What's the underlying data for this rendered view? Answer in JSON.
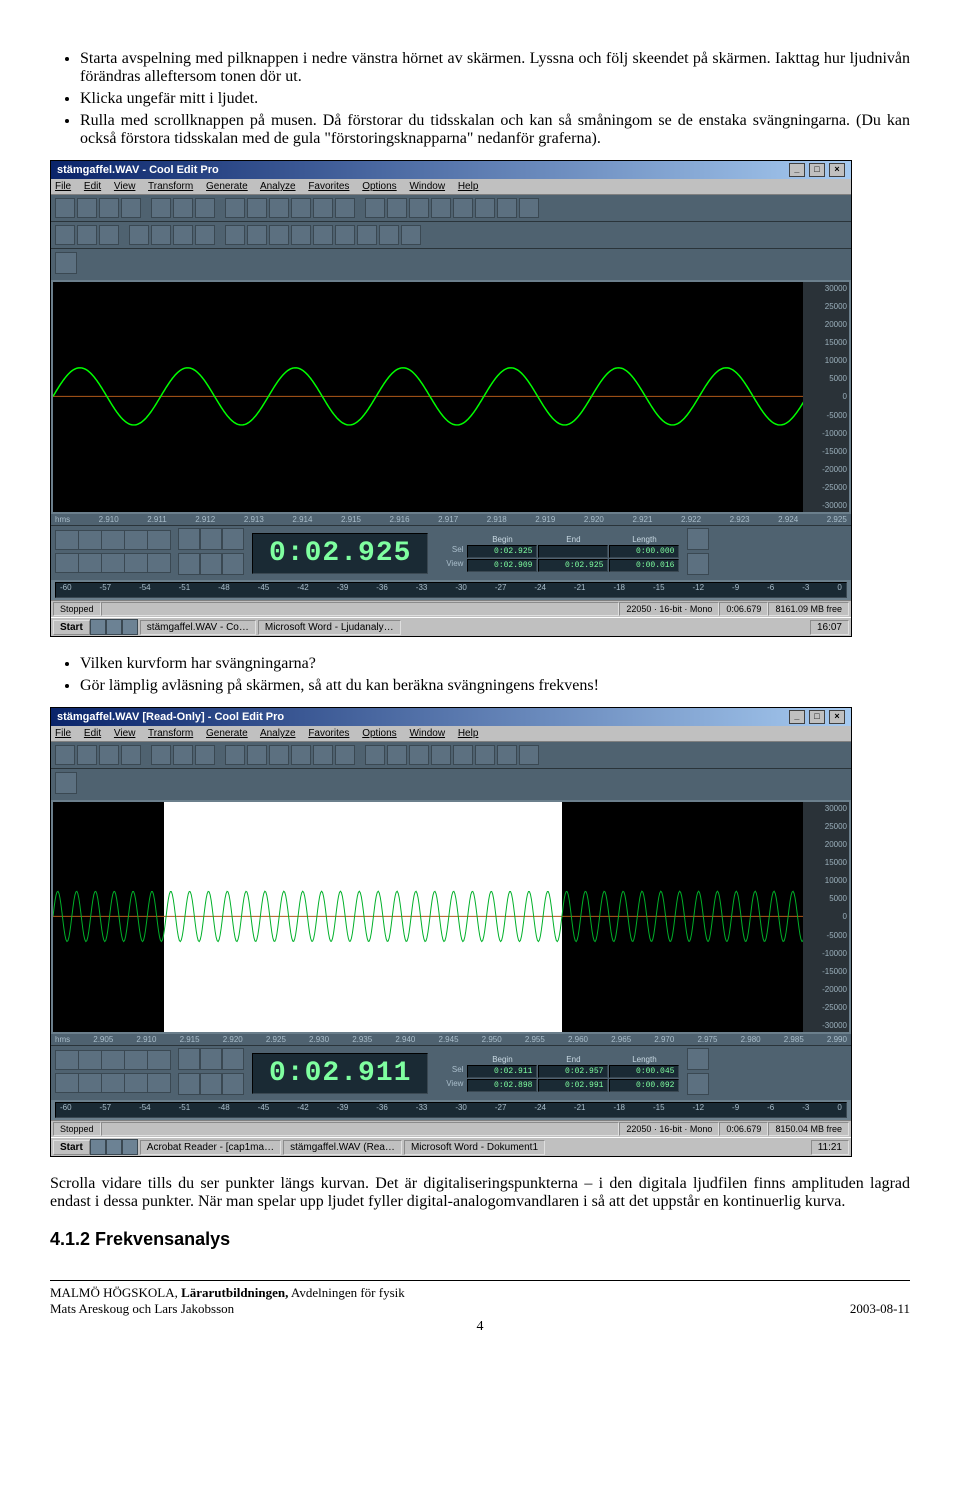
{
  "bullets_a": [
    "Starta avspelning med pilknappen i nedre vänstra hörnet av skärmen. Lyssna och följ skeendet på skärmen. Iakttag hur ljudnivån förändras alleftersom tonen dör ut.",
    "Klicka ungefär mitt i ljudet.",
    "Rulla med scrollknappen på musen. Då förstorar du tidsskalan och kan så småningom se de enstaka svängningarna. (Du kan också förstora tidsskalan med de gula \"förstoringsknapparna\" nedanför graferna)."
  ],
  "bullets_b": [
    "Vilken kurvform har svängningarna?",
    "Gör lämplig avläsning på skärmen, så att du kan beräkna svängningens frekvens!"
  ],
  "paragraph": "Scrolla vidare tills du ser punkter längs kurvan. Det är digitaliseringspunkterna – i den digitala ljudfilen finns amplituden lagrad endast i dessa punkter. När man spelar upp ljudet fyller digital-analogomvandlaren i så att det uppstår en kontinuerlig kurva.",
  "heading412": "4.1.2  Frekvensanalys",
  "footer": {
    "org": "MALMÖ HÖGSKOLA, ",
    "inst": "Lärarutbildningen,",
    "dept": " Avdelningen för fysik",
    "authors": "Mats Areskoug och Lars Jakobsson",
    "date": "2003-08-11",
    "page": "4"
  },
  "ss1": {
    "title": "stämgaffel.WAV - Cool Edit Pro",
    "menus": [
      "File",
      "Edit",
      "View",
      "Transform",
      "Generate",
      "Analyze",
      "Favorites",
      "Options",
      "Window",
      "Help"
    ],
    "yticks": [
      "30000",
      "25000",
      "20000",
      "15000",
      "10000",
      "5000",
      "0",
      "-5000",
      "-10000",
      "-15000",
      "-20000",
      "-25000",
      "-30000"
    ],
    "xticks": [
      "hms",
      "2.910",
      "2.911",
      "2.912",
      "2.913",
      "2.914",
      "2.915",
      "2.916",
      "2.917",
      "2.918",
      "2.919",
      "2.920",
      "2.921",
      "2.922",
      "2.923",
      "2.924",
      "2.925"
    ],
    "bigtime": "0:02.925",
    "sel": {
      "begin": "0:02.925",
      "end": "",
      "len": "0:00.000"
    },
    "view": {
      "begin": "0:02.909",
      "end": "0:02.925",
      "len": "0:00.016"
    },
    "db": [
      "-60",
      "-57",
      "-54",
      "-51",
      "-48",
      "-45",
      "-42",
      "-39",
      "-36",
      "-33",
      "-30",
      "-27",
      "-24",
      "-21",
      "-18",
      "-15",
      "-12",
      "-9",
      "-6",
      "-3",
      "0"
    ],
    "status": {
      "s": "Stopped",
      "fmt": "22050 · 16-bit · Mono",
      "pos": "0:06.679",
      "free": "8161.09 MB free"
    },
    "taskbar": {
      "start": "Start",
      "items": [
        "stämgaffel.WAV - Co…",
        "Microsoft Word - Ljudanaly…"
      ],
      "clock": "16:07"
    },
    "wave": {
      "type": "sine",
      "amplitude": 0.25,
      "cycles": 7,
      "color": "#00ff00",
      "center_line_color": "#b05a1a"
    }
  },
  "ss2": {
    "title": "stämgaffel.WAV [Read-Only] - Cool Edit Pro",
    "menus": [
      "File",
      "Edit",
      "View",
      "Transform",
      "Generate",
      "Analyze",
      "Favorites",
      "Options",
      "Window",
      "Help"
    ],
    "yticks": [
      "30000",
      "25000",
      "20000",
      "15000",
      "10000",
      "5000",
      "0",
      "-5000",
      "-10000",
      "-15000",
      "-20000",
      "-25000",
      "-30000"
    ],
    "xticks": [
      "hms",
      "2.905",
      "2.910",
      "2.915",
      "2.920",
      "2.925",
      "2.930",
      "2.935",
      "2.940",
      "2.945",
      "2.950",
      "2.955",
      "2.960",
      "2.965",
      "2.970",
      "2.975",
      "2.980",
      "2.985",
      "2.990"
    ],
    "bigtime": "0:02.911",
    "sel": {
      "begin": "0:02.911",
      "end": "0:02.957",
      "len": "0:00.045"
    },
    "view": {
      "begin": "0:02.898",
      "end": "0:02.991",
      "len": "0:00.092"
    },
    "db": [
      "-60",
      "-57",
      "-54",
      "-51",
      "-48",
      "-45",
      "-42",
      "-39",
      "-36",
      "-33",
      "-30",
      "-27",
      "-24",
      "-21",
      "-18",
      "-15",
      "-12",
      "-9",
      "-6",
      "-3",
      "0"
    ],
    "status": {
      "s": "Stopped",
      "fmt": "22050 · 16-bit · Mono",
      "pos": "0:06.679",
      "free": "8150.04 MB free"
    },
    "taskbar": {
      "start": "Start",
      "items": [
        "Acrobat Reader - [cap1ma…",
        "stämgaffel.WAV (Rea…",
        "Microsoft Word - Dokument1"
      ],
      "clock": "11:21"
    },
    "wave": {
      "type": "sine",
      "amplitude": 0.22,
      "cycles": 40,
      "color": "#00b029",
      "center_line_color": "#b05a1a",
      "selection_left_pct": 14,
      "selection_width_pct": 50
    }
  }
}
